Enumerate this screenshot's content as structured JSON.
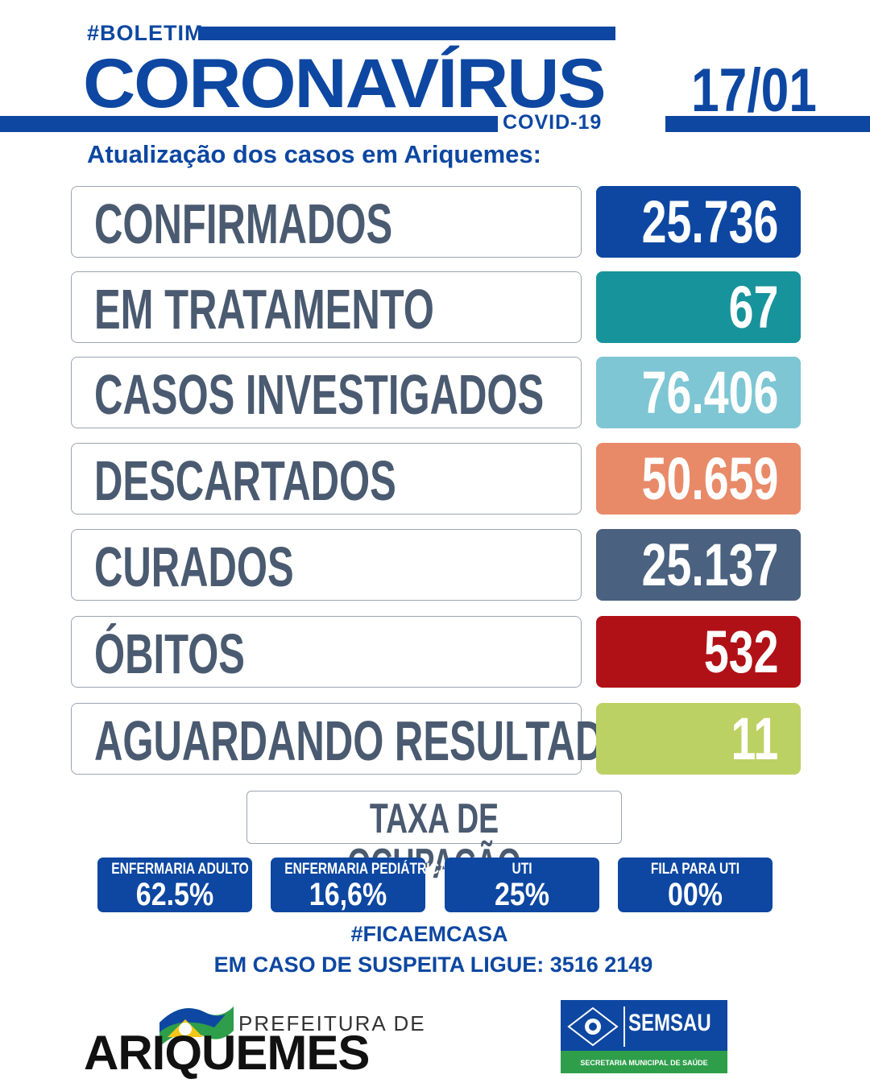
{
  "header": {
    "hashtag": "#BOLETIM",
    "title": "CORONAVÍRUS",
    "covid_label": "COVID-19",
    "subtitle": "Atualização dos casos em Ariquemes:",
    "date": "17/01"
  },
  "stats": [
    {
      "label": "CONFIRMADOS",
      "value": "25.736",
      "color": "#0d47a1"
    },
    {
      "label": "EM TRATAMENTO",
      "value": "67",
      "color": "#17939b"
    },
    {
      "label": "CASOS INVESTIGADOS",
      "value": "76.406",
      "color": "#7ec6d4"
    },
    {
      "label": "DESCARTADOS",
      "value": "50.659",
      "color": "#e88a68"
    },
    {
      "label": "CURADOS",
      "value": "25.137",
      "color": "#4a617f"
    },
    {
      "label": "ÓBITOS",
      "value": "532",
      "color": "#b01116"
    },
    {
      "label": "AGUARDANDO RESULTADO",
      "value": "11",
      "color": "#bcd163"
    }
  ],
  "occupancy": {
    "title": "TAXA DE OCUPAÇÃO",
    "items": [
      {
        "label": "ENFERMARIA ADULTO",
        "value": "62.5%"
      },
      {
        "label": "ENFERMARIA PEDIÁTRICA",
        "value": "16,6%"
      },
      {
        "label": "UTI",
        "value": "25%"
      },
      {
        "label": "FILA PARA UTI",
        "value": "00%"
      }
    ]
  },
  "footer": {
    "hashtag": "#FICAEMCASA",
    "contact": "EM CASO DE SUSPEITA LIGUE: 3516 2149",
    "prefeitura_de": "PREFEITURA DE",
    "city": "ARIQUEMES",
    "semsau_name": "SEMSAU",
    "semsau_sub": "SECRETARIA MUNICIPAL DE SAÚDE"
  }
}
